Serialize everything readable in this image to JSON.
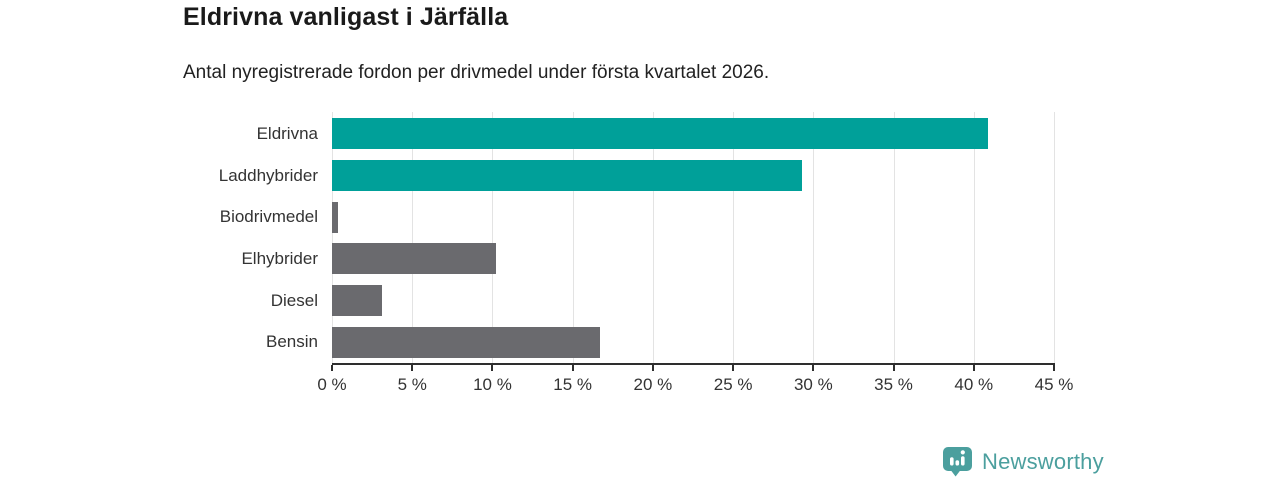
{
  "header": {
    "title": "Eldrivna vanligast i Järfälla",
    "subtitle": "Antal nyregistrerade fordon per drivmedel under första kvartalet 2026."
  },
  "chart_data": {
    "type": "bar",
    "orientation": "horizontal",
    "title": "Eldrivna vanligast i Järfälla",
    "subtitle": "Antal nyregistrerade fordon per drivmedel under första kvartalet 2026.",
    "categories": [
      "Eldrivna",
      "Laddhybrider",
      "Biodrivmedel",
      "Elhybrider",
      "Diesel",
      "Bensin"
    ],
    "values": [
      40.9,
      29.3,
      0.4,
      10.2,
      3.1,
      16.7
    ],
    "unit": "%",
    "bar_colors": [
      "#00a099",
      "#00a099",
      "#6a6a6e",
      "#6a6a6e",
      "#6a6a6e",
      "#6a6a6e"
    ],
    "highlight_color": "#00a099",
    "default_bar_color": "#6a6a6e",
    "xlim": [
      0,
      45
    ],
    "x_ticks": [
      0,
      5,
      10,
      15,
      20,
      25,
      30,
      35,
      40,
      45
    ],
    "x_tick_suffix": " %",
    "grid": true,
    "legend": false,
    "gridline_color": "#e3e3e3",
    "axis_color": "#2e2e2e"
  },
  "footer": {
    "brand": "Newsworthy",
    "brand_color": "#4b9f9e",
    "logo_icon": "newsworthy-speech-bubble-bar-chart-icon"
  }
}
